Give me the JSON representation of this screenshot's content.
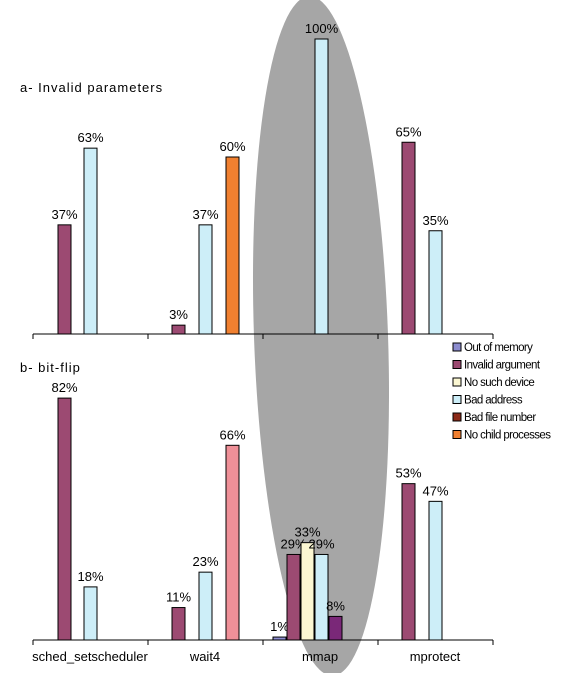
{
  "chart_data": {
    "type": "bar",
    "categories": [
      "sched_setscheduler",
      "wait4",
      "mmap",
      "mprotect"
    ],
    "highlighted_category": "mmap",
    "highlight_color": "#a6a6a6",
    "legend_position": "right, beside bottom panel",
    "legend": [
      {
        "name": "Out of memory",
        "label": "Out of memory",
        "color": "#8c8ccf"
      },
      {
        "name": "Invalid argument",
        "label": "Invalid argument",
        "color": "#9c4a72"
      },
      {
        "name": "No such device",
        "label": "No such device",
        "color": "#fbf7d2"
      },
      {
        "name": "Bad address",
        "label": "Bad address",
        "color": "#cdeef8"
      },
      {
        "name": "Bad file number",
        "label": "Bad file number",
        "color": "#8c2a18"
      },
      {
        "name": "No child processes",
        "label": "No child processes",
        "color": "#f08030"
      }
    ],
    "panels": [
      {
        "title": "a- Invalid parameters",
        "ylim": [
          0,
          100
        ],
        "bars": [
          {
            "category": "sched_setscheduler",
            "series": "Invalid argument",
            "value": 37,
            "label": "37%",
            "color": "#9c4a72"
          },
          {
            "category": "sched_setscheduler",
            "series": "Bad address",
            "value": 63,
            "label": "63%",
            "color": "#cdeef8"
          },
          {
            "category": "wait4",
            "series": "Invalid argument",
            "value": 3,
            "label": "3%",
            "color": "#9c4a72"
          },
          {
            "category": "wait4",
            "series": "Bad address",
            "value": 37,
            "label": "37%",
            "color": "#cdeef8"
          },
          {
            "category": "wait4",
            "series": "No child processes",
            "value": 60,
            "label": "60%",
            "color": "#f08030"
          },
          {
            "category": "mmap",
            "series": "Bad address",
            "value": 100,
            "label": "100%",
            "color": "#cdeef8"
          },
          {
            "category": "mprotect",
            "series": "Invalid argument",
            "value": 65,
            "label": "65%",
            "color": "#9c4a72"
          },
          {
            "category": "mprotect",
            "series": "Bad address",
            "value": 35,
            "label": "35%",
            "color": "#cdeef8"
          }
        ]
      },
      {
        "title": "b- bit-flip",
        "ylim": [
          0,
          100
        ],
        "bars": [
          {
            "category": "sched_setscheduler",
            "series": "Invalid argument",
            "value": 82,
            "label": "82%",
            "color": "#9c4a72"
          },
          {
            "category": "sched_setscheduler",
            "series": "Bad address",
            "value": 18,
            "label": "18%",
            "color": "#cdeef8"
          },
          {
            "category": "wait4",
            "series": "Invalid argument",
            "value": 11,
            "label": "11%",
            "color": "#9c4a72"
          },
          {
            "category": "wait4",
            "series": "Bad address",
            "value": 23,
            "label": "23%",
            "color": "#cdeef8"
          },
          {
            "category": "wait4",
            "series": "No child processes",
            "value": 66,
            "label": "66%",
            "color": "#ef9098"
          },
          {
            "category": "mmap",
            "series": "Out of memory",
            "value": 1,
            "label": "1%",
            "color": "#8c8ccf"
          },
          {
            "category": "mmap",
            "series": "Invalid argument",
            "value": 29,
            "label": "29%",
            "color": "#9c4a72"
          },
          {
            "category": "mmap",
            "series": "No such device",
            "value": 33,
            "label": "33%",
            "color": "#fbf7d2"
          },
          {
            "category": "mmap",
            "series": "Bad address",
            "value": 29,
            "label": "29%",
            "color": "#cdeef8"
          },
          {
            "category": "mmap",
            "series": "Bad file number",
            "value": 8,
            "label": "8%",
            "color": "#7a2878"
          },
          {
            "category": "mprotect",
            "series": "Invalid argument",
            "value": 53,
            "label": "53%",
            "color": "#9c4a72"
          },
          {
            "category": "mprotect",
            "series": "Bad address",
            "value": 47,
            "label": "47%",
            "color": "#cdeef8"
          }
        ]
      }
    ]
  }
}
